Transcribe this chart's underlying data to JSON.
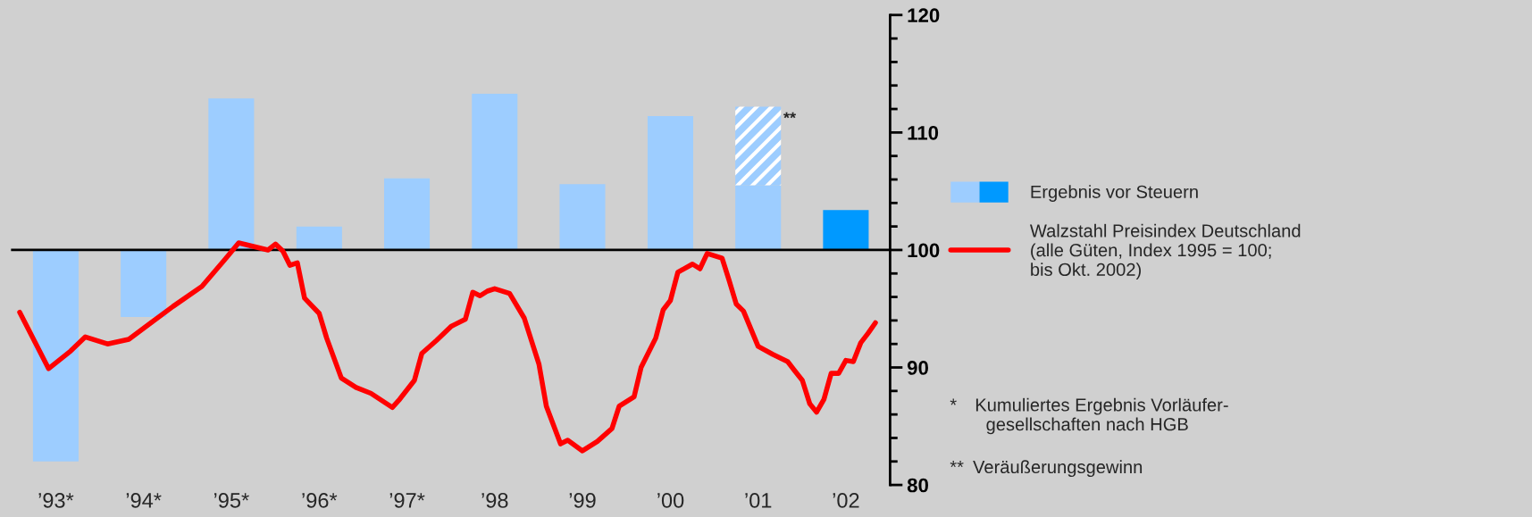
{
  "chart_data": {
    "type": "bar",
    "legend": "right",
    "series": [
      {
        "name": "Ergebnis vor Steuern",
        "base": [
          100,
          100,
          100,
          100,
          100,
          100,
          100,
          100,
          100,
          100
        ],
        "x": [
          "1993-07",
          "1994-07",
          "1995-07",
          "1996-07",
          "1997-07",
          "1998-07",
          "1999-07",
          "2000-07",
          "2001-07",
          "2002-07"
        ],
        "colors": [
          "#9dcdff",
          "#9dcdff",
          "#9dcdff",
          "#9dcdff",
          "#9dcdff",
          "#9dcdff",
          "#9dcdff",
          "#9dcdff",
          "#9dcdff",
          "#0099ff"
        ],
        "values": [
          -18.0,
          -5.7,
          12.9,
          2.0,
          6.1,
          13.3,
          5.6,
          11.4,
          5.5,
          3.4
        ]
      },
      {
        "x": [
          "2001-07"
        ],
        "base": [
          105.5
        ],
        "color": "#9dcdff",
        "values": [
          6.7
        ]
      },
      {
        "name": "Walzstahl Preisindex Deutschland\n(alle Güten, Index 1995 = 100;\nbis Okt. 2002)",
        "type": "line",
        "color": "#ff0000",
        "x": [
          "1993-02",
          "1993-06",
          "1993-09",
          "1993-11",
          "1994-02",
          "1994-05",
          "1994-08",
          "1994-11",
          "1995-03",
          "1995-06",
          "1995-08",
          "1995-10",
          "1995-12",
          "1996-01",
          "1996-02",
          "1996-03",
          "1996-04",
          "1996-05",
          "1996-07",
          "1996-08",
          "1996-10",
          "1996-12",
          "1997-02",
          "1997-05",
          "1997-06",
          "1997-08",
          "1997-09",
          "1997-11",
          "1998-01",
          "1998-03",
          "1998-04",
          "1998-05",
          "1998-06",
          "1998-07",
          "1998-09",
          "1998-11",
          "1999-01",
          "1999-02",
          "1999-04",
          "1999-05",
          "1999-07",
          "1999-09",
          "1999-11",
          "1999-12",
          "2000-02",
          "2000-03",
          "2000-05",
          "2000-06",
          "2000-07",
          "2000-08",
          "2000-10",
          "2000-11",
          "2000-12",
          "2001-02",
          "2001-03",
          "2001-04",
          "2001-05",
          "2001-07",
          "2001-09",
          "2001-11",
          "2001-12",
          "2002-01",
          "2002-02",
          "2002-03",
          "2002-04",
          "2002-05",
          "2002-06",
          "2002-07",
          "2002-08",
          "2002-09",
          "2002-10",
          "2002-11"
        ],
        "values": [
          94.7,
          89.9,
          91.4,
          92.6,
          92.0,
          92.4,
          93.8,
          95.2,
          96.9,
          99.1,
          100.6,
          100.3,
          100.0,
          100.5,
          99.9,
          98.7,
          98.9,
          95.9,
          94.6,
          92.5,
          89.1,
          88.3,
          87.8,
          86.6,
          87.3,
          88.9,
          91.2,
          92.3,
          93.5,
          94.1,
          96.4,
          96.1,
          96.5,
          96.7,
          96.3,
          94.2,
          90.3,
          86.7,
          83.5,
          83.8,
          82.9,
          83.7,
          84.8,
          86.7,
          87.5,
          90.0,
          92.5,
          94.9,
          95.7,
          98.1,
          98.8,
          98.4,
          99.7,
          99.3,
          97.5,
          95.4,
          94.8,
          91.8,
          91.1,
          90.5,
          89.7,
          88.9,
          86.9,
          86.2,
          87.3,
          89.5,
          89.5,
          90.6,
          90.5,
          92.1,
          92.9,
          93.8
        ]
      }
    ],
    "xlim": [
      "1993",
      "2003"
    ],
    "xticks": [
      {
        "value": "1993-07",
        "label": "’93*"
      },
      {
        "value": "1994-07",
        "label": "’94*"
      },
      {
        "value": "1995-07",
        "label": "’95*"
      },
      {
        "value": "1996-07",
        "label": "’96*"
      },
      {
        "value": "1997-07",
        "label": "’97*"
      },
      {
        "value": "1998-07",
        "label": "’98"
      },
      {
        "value": "1999-07",
        "label": "’99"
      },
      {
        "value": "2000-07",
        "label": "’00"
      },
      {
        "value": "2001-07",
        "label": "’01"
      },
      {
        "value": "2002-07",
        "label": "’02"
      }
    ],
    "ylim": [
      80,
      120
    ],
    "yticks": [
      80,
      {
        "value": 82,
        "label": null
      },
      {
        "value": 84,
        "label": null
      },
      {
        "value": 86,
        "label": null
      },
      {
        "value": 88,
        "label": null
      },
      90,
      {
        "value": 92,
        "label": null
      },
      {
        "value": 94,
        "label": null
      },
      {
        "value": 96,
        "label": null
      },
      {
        "value": 98,
        "label": null
      },
      100,
      {
        "value": 102,
        "label": null
      },
      {
        "value": 104,
        "label": null
      },
      {
        "value": 106,
        "label": null
      },
      {
        "value": 108,
        "label": null
      },
      110,
      {
        "value": 112,
        "label": null
      },
      {
        "value": 114,
        "label": null
      },
      {
        "value": 116,
        "label": null
      },
      {
        "value": 118,
        "label": null
      },
      120
    ],
    "annotations": [
      "**",
      "* Kumuliertes Ergebnis Vorläufer-\n  gesellschaften nach HGB",
      "** Veräußerungsgewinn"
    ]
  }
}
